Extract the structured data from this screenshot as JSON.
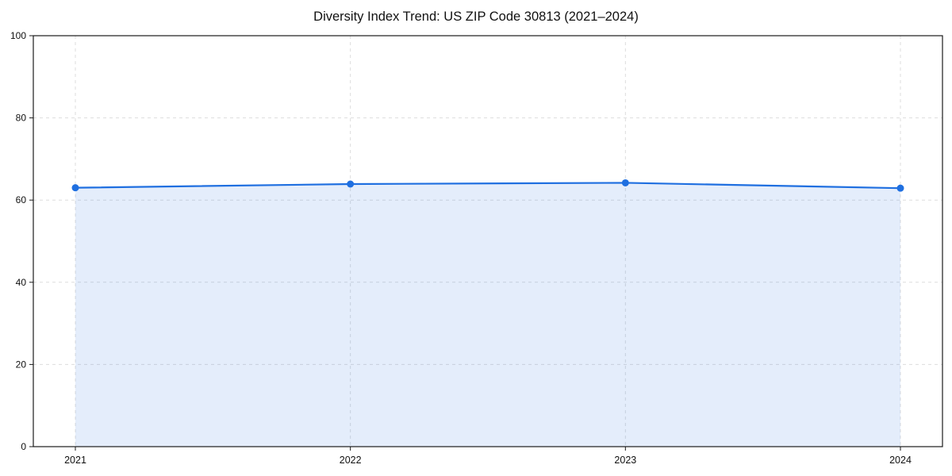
{
  "title": "Diversity Index Trend: US ZIP Code 30813 (2021–2024)",
  "chart_data": {
    "type": "area",
    "title": "Diversity Index Trend: US ZIP Code 30813 (2021–2024)",
    "x": [
      2021,
      2022,
      2023,
      2024
    ],
    "xticklabels": [
      "2021",
      "2022",
      "2023",
      "2024"
    ],
    "series": [
      {
        "name": "Diversity Index",
        "values": [
          63.0,
          63.9,
          64.2,
          62.9
        ]
      }
    ],
    "xlabel": "",
    "ylabel": "",
    "ylim": [
      0,
      100
    ],
    "yticks": [
      0,
      20,
      40,
      60,
      80,
      100
    ],
    "grid": "dashed",
    "legend": "none",
    "line_color": "#1f6fe0",
    "marker_color": "#1f6fe0",
    "fill_color": "#1f6fe0",
    "fill_opacity": 0.12,
    "grid_color": "#dddddd",
    "spine_color": "#1a1a1a",
    "tick_label_color": "#111111"
  }
}
